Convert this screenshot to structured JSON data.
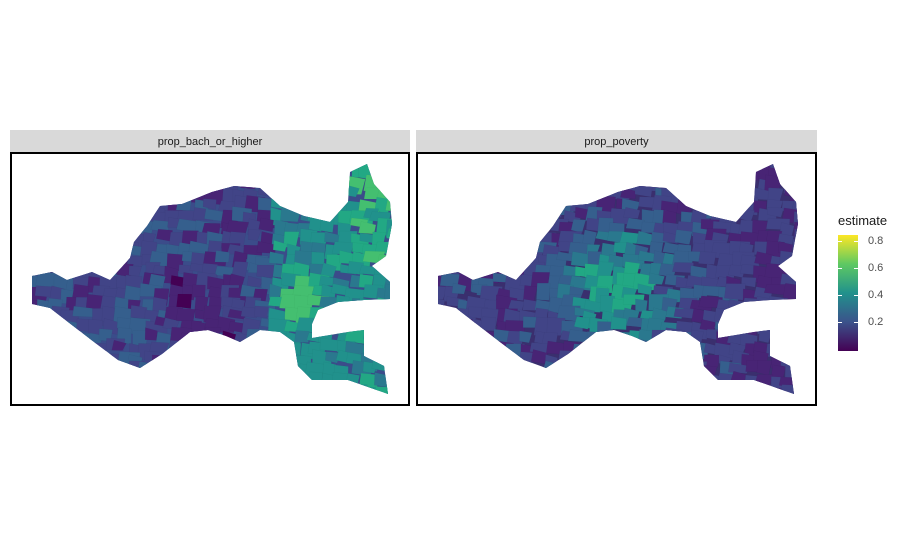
{
  "facets": [
    {
      "label": "prop_bach_or_higher"
    },
    {
      "label": "prop_poverty"
    }
  ],
  "legend": {
    "title": "estimate",
    "ticks": [
      "0.8",
      "0.6",
      "0.4",
      "0.2"
    ],
    "colors": [
      "#440154",
      "#3b528b",
      "#21918c",
      "#5ec962",
      "#fde725"
    ]
  }
}
